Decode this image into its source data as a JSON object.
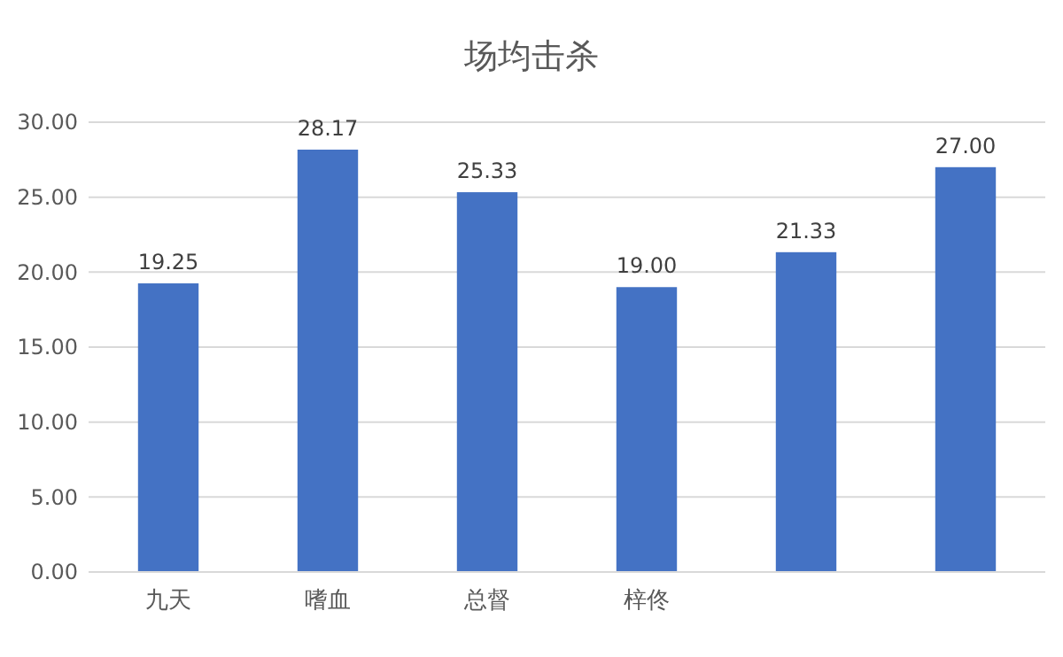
{
  "chart_data": {
    "type": "bar",
    "title": "场均击杀",
    "categories": [
      "九天",
      "嗜血",
      "总督",
      "梓佟",
      null,
      null
    ],
    "values": [
      19.25,
      28.17,
      25.33,
      19.0,
      21.33,
      27.0
    ],
    "value_labels": [
      "19.25",
      "28.17",
      "25.33",
      "19.00",
      "21.33",
      "27.00"
    ],
    "color": "#4472c4",
    "ylim": [
      0,
      30
    ],
    "yticks": [
      {
        "value": 0,
        "label": "0.00"
      },
      {
        "value": 5,
        "label": "5.00"
      },
      {
        "value": 10,
        "label": "10.00"
      },
      {
        "value": 15,
        "label": "15.00"
      },
      {
        "value": 20,
        "label": "20.00"
      },
      {
        "value": 25,
        "label": "25.00"
      },
      {
        "value": 30,
        "label": "30.00"
      }
    ],
    "grid": true
  }
}
